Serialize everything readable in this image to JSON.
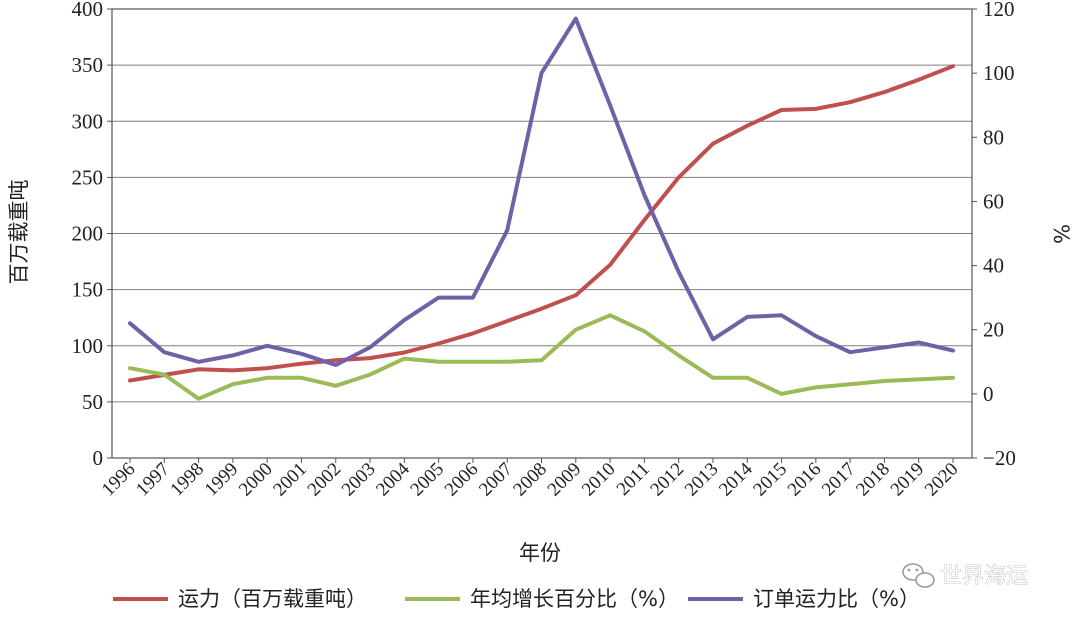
{
  "chart_data": {
    "type": "line",
    "title": "",
    "xlabel": "年份",
    "ylabel_left": "百万载重吨",
    "ylabel_right": "%",
    "x": [
      "1996",
      "1997",
      "1998",
      "1999",
      "2000",
      "2001",
      "2002",
      "2003",
      "2004",
      "2005",
      "2006",
      "2007",
      "2008",
      "2009",
      "2010",
      "2011",
      "2012",
      "2013",
      "2014",
      "2015",
      "2016",
      "2017",
      "2018",
      "2019",
      "2020"
    ],
    "ylim_left": [
      0,
      400
    ],
    "yticks_left": [
      "0",
      "50",
      "100",
      "150",
      "200",
      "250",
      "300",
      "350",
      "400"
    ],
    "ylim_right": [
      -20,
      120
    ],
    "yticks_right": [
      "−20",
      "0",
      "20",
      "40",
      "60",
      "80",
      "100",
      "120"
    ],
    "grid": true,
    "legend_position": "bottom",
    "series": [
      {
        "name": "运力（百万载重吨）",
        "axis": "left",
        "color": "#c0504d",
        "values": [
          69,
          74,
          79,
          78,
          80,
          84,
          87,
          89,
          94,
          102,
          111,
          122,
          133,
          145,
          172,
          212,
          250,
          280,
          296,
          310,
          311,
          317,
          326,
          337,
          349
        ]
      },
      {
        "name": "年均增长百分比（%）",
        "axis": "right",
        "color": "#9bbb59",
        "values": [
          8,
          6,
          -1.5,
          3,
          5,
          5,
          2.5,
          6,
          11,
          10,
          10,
          10,
          10.5,
          20,
          24.5,
          19.5,
          12,
          5,
          5,
          0,
          2,
          3,
          4,
          4.5,
          5
        ]
      },
      {
        "name": "订单运力比（%）",
        "axis": "right",
        "color": "#7060a8",
        "values": [
          22,
          13,
          10,
          12,
          15,
          12.5,
          9,
          14.5,
          23,
          30,
          30,
          51,
          100,
          117,
          90,
          62,
          38,
          17,
          24,
          24.5,
          18,
          13,
          14.5,
          16,
          13.5
        ]
      }
    ]
  },
  "watermark": {
    "icon": "wechat-icon",
    "text": "世界海运"
  }
}
